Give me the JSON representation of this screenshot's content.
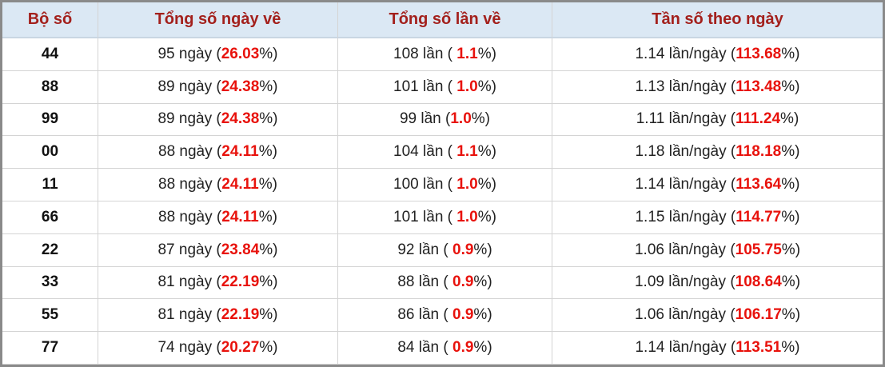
{
  "table": {
    "header": [
      "Bộ số",
      "Tổng số ngày về",
      "Tổng số lần về",
      "Tần số theo ngày"
    ],
    "rows": [
      [
        "44",
        [
          "95 ngày (",
          "26.03",
          "%)"
        ],
        [
          "108 lần ( ",
          "1.1",
          "%)"
        ],
        [
          "1.14 lần/ngày (",
          "113.68",
          "%)"
        ]
      ],
      [
        "88",
        [
          "89 ngày (",
          "24.38",
          "%)"
        ],
        [
          "101 lần ( ",
          "1.0",
          "%)"
        ],
        [
          "1.13 lần/ngày (",
          "113.48",
          "%)"
        ]
      ],
      [
        "99",
        [
          "89 ngày (",
          "24.38",
          "%)"
        ],
        [
          "99 lần (",
          "1.0",
          "%)"
        ],
        [
          "1.11 lần/ngày (",
          "111.24",
          "%)"
        ]
      ],
      [
        "00",
        [
          "88 ngày (",
          "24.11",
          "%)"
        ],
        [
          "104 lần ( ",
          "1.1",
          "%)"
        ],
        [
          "1.18 lần/ngày (",
          "118.18",
          "%)"
        ]
      ],
      [
        "11",
        [
          "88 ngày (",
          "24.11",
          "%)"
        ],
        [
          "100 lần ( ",
          "1.0",
          "%)"
        ],
        [
          "1.14 lần/ngày (",
          "113.64",
          "%)"
        ]
      ],
      [
        "66",
        [
          "88 ngày (",
          "24.11",
          "%)"
        ],
        [
          "101 lần ( ",
          "1.0",
          "%)"
        ],
        [
          "1.15 lần/ngày (",
          "114.77",
          "%)"
        ]
      ],
      [
        "22",
        [
          "87 ngày (",
          "23.84",
          "%)"
        ],
        [
          "92 lần ( ",
          "0.9",
          "%)"
        ],
        [
          "1.06 lần/ngày (",
          "105.75",
          "%)"
        ]
      ],
      [
        "33",
        [
          "81 ngày (",
          "22.19",
          "%)"
        ],
        [
          "88 lần ( ",
          "0.9",
          "%)"
        ],
        [
          "1.09 lần/ngày (",
          "108.64",
          "%)"
        ]
      ],
      [
        "55",
        [
          "81 ngày (",
          "22.19",
          "%)"
        ],
        [
          "86 lần ( ",
          "0.9",
          "%)"
        ],
        [
          "1.06 lần/ngày (",
          "106.17",
          "%)"
        ]
      ],
      [
        "77",
        [
          "74 ngày (",
          "20.27",
          "%)"
        ],
        [
          "84 lần ( ",
          "0.9",
          "%)"
        ],
        [
          "1.14 lần/ngày (",
          "113.51",
          "%)"
        ]
      ]
    ]
  }
}
